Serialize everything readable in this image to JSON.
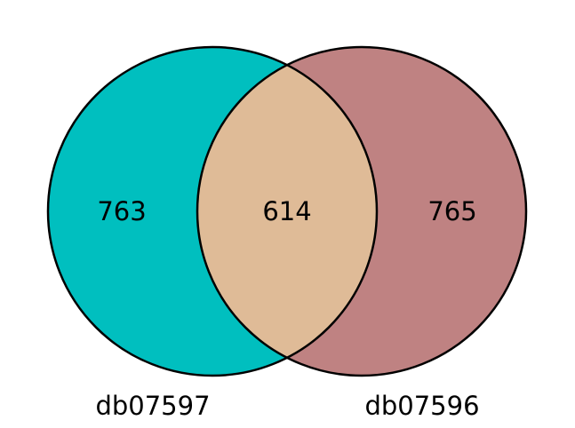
{
  "venn": {
    "sets": [
      {
        "name": "db07597",
        "color": "#00bfbf"
      },
      {
        "name": "db07596",
        "color": "#bf8282"
      }
    ],
    "intersection_color": "#dfbb97",
    "outline_color": "#000000",
    "counts": {
      "left_only": "763",
      "both": "614",
      "right_only": "765"
    }
  }
}
